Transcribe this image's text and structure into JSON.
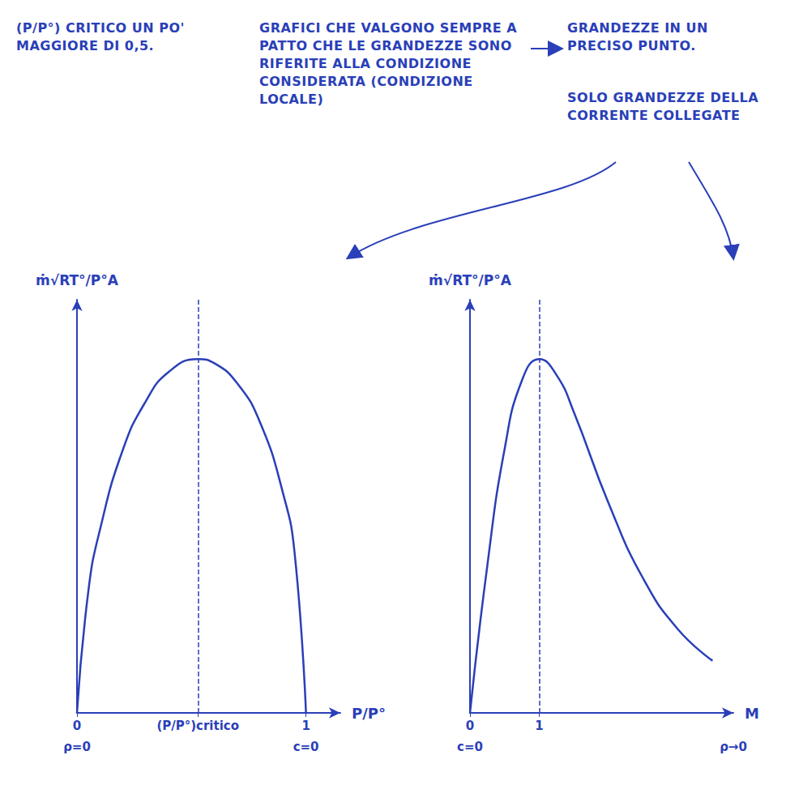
{
  "chart_data": [
    {
      "type": "line",
      "y_label": "ṁ√RT°/P°A",
      "x_label": "P/P°",
      "x": [
        0,
        0.05,
        0.1,
        0.2,
        0.3,
        0.4,
        0.528,
        0.6,
        0.7,
        0.8,
        0.9,
        0.95,
        1
      ],
      "values": [
        0,
        0.237,
        0.354,
        0.509,
        0.603,
        0.66,
        0.685,
        0.677,
        0.638,
        0.562,
        0.425,
        0.311,
        0
      ],
      "color": "#2a3fb8",
      "xlim": [
        0,
        1.15
      ],
      "ylim": [
        0,
        0.8
      ],
      "xticks": [
        0,
        {
          "value": 0.528,
          "label": "(P/P°)critico"
        },
        1
      ],
      "reference_line": {
        "x": 0.528
      },
      "annotations": [
        {
          "x": 0,
          "text": "ρ=0"
        },
        {
          "x": 1,
          "text": "c=0"
        }
      ],
      "tick_labels": "x",
      "grid": false
    },
    {
      "type": "line",
      "y_label": "ṁ√RT°/P°A",
      "x_label": "M",
      "x": [
        0,
        0.25,
        0.5,
        0.75,
        1,
        1.25,
        1.5,
        2,
        2.5,
        3,
        3.5
      ],
      "values": [
        0,
        0.285,
        0.511,
        0.644,
        0.685,
        0.654,
        0.582,
        0.406,
        0.26,
        0.162,
        0.101
      ],
      "color": "#2a3fb8",
      "xlim": [
        0,
        3.8
      ],
      "ylim": [
        0,
        0.8
      ],
      "xticks": [
        0,
        1
      ],
      "reference_line": {
        "x": 1
      },
      "annotations": [
        {
          "x": 0,
          "text": "c=0"
        },
        {
          "x": 3.8,
          "text": "ρ→0"
        }
      ],
      "tick_labels": "x",
      "grid": false
    }
  ],
  "notes": {
    "critical": "(P/P°) CRITICO UN PO' MAGGIORE DI 0,5.",
    "validity": "GRAFICI CHE VALGONO SEMPRE A PATTO CHE LE GRANDEZZE SONO RIFERITE ALLA CONDIZIONE CONSIDERATA (CONDIZIONE LOCALE)",
    "local": "GRANDEZZE IN UN PRECISO PUNTO.",
    "stream": "SOLO GRANDEZZE DELLA CORRENTE COLLEGATE"
  }
}
